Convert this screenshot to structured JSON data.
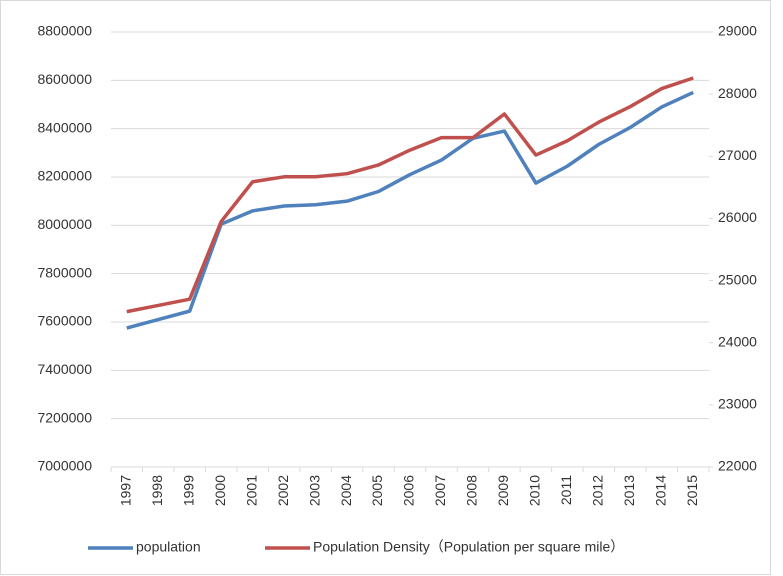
{
  "chart_data": {
    "type": "line",
    "categories": [
      "1997",
      "1998",
      "1999",
      "2000",
      "2001",
      "2002",
      "2003",
      "2004",
      "2005",
      "2006",
      "2007",
      "2008",
      "2009",
      "2010",
      "2011",
      "2012",
      "2013",
      "2014",
      "2015"
    ],
    "series": [
      {
        "name": "population",
        "color": "#4f81bd",
        "values": [
          7575000,
          7610000,
          7645000,
          8005000,
          8060000,
          8080000,
          8085000,
          8100000,
          8140000,
          8210000,
          8270000,
          8360000,
          8390000,
          8175000,
          8245000,
          8335000,
          8405000,
          8490000,
          8550000
        ]
      },
      {
        "name": "Population Density（Population per square mile）",
        "color": "#c0504d",
        "axis": "y2",
        "values": [
          24500,
          24600,
          24700,
          25950,
          26590,
          26670,
          26670,
          26720,
          26860,
          27100,
          27300,
          27300,
          27680,
          27020,
          27250,
          27550,
          27800,
          28090,
          28260
        ]
      }
    ],
    "ylim": [
      7000000,
      8800000
    ],
    "yticks": [
      7000000,
      7200000,
      7400000,
      7600000,
      7800000,
      8000000,
      8200000,
      8400000,
      8600000,
      8800000
    ],
    "y2lim": [
      22000,
      29000
    ],
    "y2ticks": [
      22000,
      23000,
      24000,
      25000,
      26000,
      27000,
      28000,
      29000
    ],
    "grid": true,
    "legend": "bottom"
  }
}
